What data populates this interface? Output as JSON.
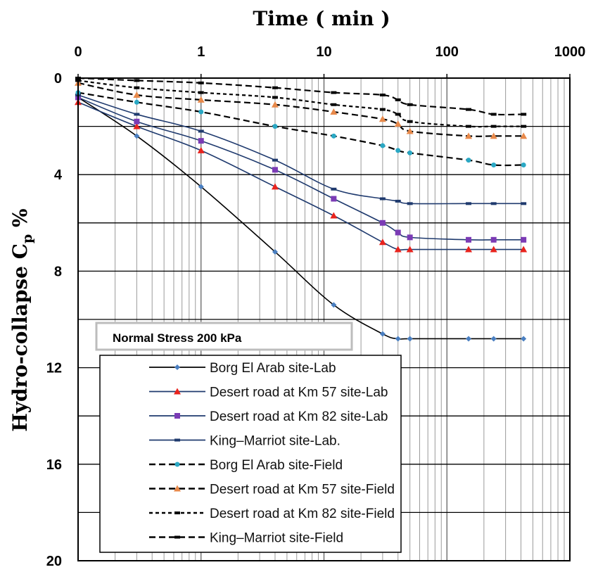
{
  "chart_data": {
    "type": "line",
    "title": "",
    "xlabel": "Time ( min )",
    "ylabel_main": "Hydro-collapse C",
    "ylabel_sub": "p",
    "ylabel_suffix": " %",
    "x_scale": "log",
    "x_range": [
      0.1,
      1000
    ],
    "y_range": [
      0,
      20
    ],
    "y_inverted": true,
    "x_axis_position": "top",
    "x_ticks": [
      {
        "value": 0.1,
        "label": "0"
      },
      {
        "value": 1,
        "label": "1"
      },
      {
        "value": 10,
        "label": "10"
      },
      {
        "value": 100,
        "label": "100"
      },
      {
        "value": 1000,
        "label": "1000"
      }
    ],
    "y_ticks": [
      {
        "value": 0,
        "label": "0"
      },
      {
        "value": 4,
        "label": "4"
      },
      {
        "value": 8,
        "label": "8"
      },
      {
        "value": 12,
        "label": "12"
      },
      {
        "value": 16,
        "label": "16"
      },
      {
        "value": 20,
        "label": "20"
      }
    ],
    "y_major_grid": [
      2,
      4,
      6,
      8,
      10,
      12,
      14,
      16,
      18
    ],
    "grid": true,
    "legend_position": "bottom-left",
    "annotation": "Normal Stress  200 kPa",
    "series": [
      {
        "name": "Borg El Arab site-Lab",
        "style": "solid",
        "color": "#000000",
        "marker": "diamond",
        "marker_color": "#4a7fc1",
        "x": [
          0.1,
          0.3,
          1,
          4,
          12,
          30,
          40,
          50,
          150,
          240,
          420
        ],
        "y": [
          0.8,
          2.4,
          4.5,
          7.2,
          9.4,
          10.6,
          10.8,
          10.8,
          10.8,
          10.8,
          10.8
        ]
      },
      {
        "name": "Desert road at Km 57 site-Lab",
        "style": "solid",
        "color": "#1f3a6e",
        "marker": "triangle",
        "marker_color": "#e8231d",
        "x": [
          0.1,
          0.3,
          1,
          4,
          12,
          30,
          40,
          50,
          150,
          240,
          420
        ],
        "y": [
          1.0,
          2.0,
          3.0,
          4.5,
          5.7,
          6.8,
          7.1,
          7.1,
          7.1,
          7.1,
          7.1
        ]
      },
      {
        "name": "Desert road at Km 82 site-Lab",
        "style": "solid",
        "color": "#1f3a6e",
        "marker": "square",
        "marker_color": "#7b3bb5",
        "x": [
          0.1,
          0.3,
          1,
          4,
          12,
          30,
          40,
          50,
          150,
          240,
          420
        ],
        "y": [
          0.8,
          1.8,
          2.6,
          3.8,
          5.0,
          6.0,
          6.4,
          6.6,
          6.7,
          6.7,
          6.7
        ]
      },
      {
        "name": "King–Marriot site-Lab.",
        "style": "solid",
        "color": "#1f3a6e",
        "marker": "dash",
        "marker_color": "#1f3a6e",
        "x": [
          0.1,
          0.3,
          1,
          4,
          12,
          30,
          40,
          50,
          150,
          240,
          420
        ],
        "y": [
          0.7,
          1.5,
          2.2,
          3.4,
          4.6,
          5.0,
          5.1,
          5.2,
          5.2,
          5.2,
          5.2
        ]
      },
      {
        "name": "Borg El Arab site-Field",
        "style": "dashed",
        "color": "#000000",
        "marker": "circle",
        "marker_color": "#2aa8c4",
        "x": [
          0.1,
          0.3,
          1,
          4,
          12,
          30,
          40,
          50,
          150,
          240,
          420
        ],
        "y": [
          0.6,
          1.0,
          1.4,
          2.0,
          2.4,
          2.8,
          3.0,
          3.1,
          3.4,
          3.6,
          3.6
        ]
      },
      {
        "name": "Desert road at Km 57 site-Field",
        "style": "dashed",
        "color": "#000000",
        "marker": "triangle",
        "marker_color": "#e8894a",
        "x": [
          0.1,
          0.3,
          1,
          4,
          12,
          30,
          40,
          50,
          150,
          240,
          420
        ],
        "y": [
          0.2,
          0.7,
          0.9,
          1.1,
          1.4,
          1.7,
          1.9,
          2.2,
          2.4,
          2.4,
          2.4
        ]
      },
      {
        "name": "Desert road at Km 82 site-Field",
        "style": "dotted",
        "color": "#000000",
        "marker": "dash",
        "marker_color": "#000000",
        "x": [
          0.1,
          0.3,
          1,
          4,
          12,
          30,
          40,
          50,
          150,
          240,
          420
        ],
        "y": [
          0.1,
          0.4,
          0.6,
          0.8,
          1.1,
          1.3,
          1.5,
          1.8,
          2.0,
          2.0,
          2.0
        ]
      },
      {
        "name": "King–Marriot site-Field",
        "style": "dashed",
        "color": "#000000",
        "marker": "dash",
        "marker_color": "#000000",
        "x": [
          0.1,
          0.3,
          1,
          4,
          12,
          30,
          40,
          50,
          150,
          240,
          420
        ],
        "y": [
          0.0,
          0.1,
          0.2,
          0.4,
          0.6,
          0.7,
          0.9,
          1.1,
          1.3,
          1.5,
          1.5
        ]
      }
    ]
  }
}
